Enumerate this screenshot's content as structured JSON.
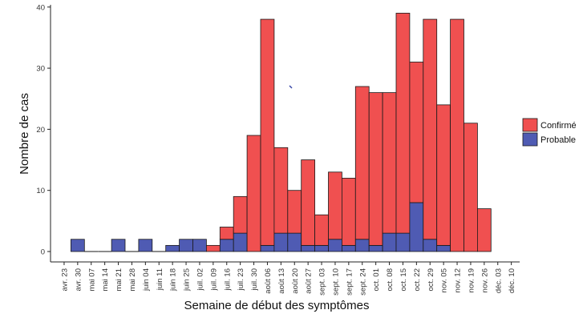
{
  "chart_data": {
    "type": "bar",
    "stacked": true,
    "xlabel": "Semaine de début des symptômes",
    "ylabel": "Nombre de cas",
    "ylim": [
      0,
      41
    ],
    "yticks": [
      0,
      10,
      20,
      30,
      40
    ],
    "grid": false,
    "legend_position": "right",
    "categories": [
      "avr. 23",
      "avr. 30",
      "mai 07",
      "mai 14",
      "mai 21",
      "mai 28",
      "juin 04",
      "juin 11",
      "juin 18",
      "juin 25",
      "juil. 02",
      "juil. 09",
      "juil. 16",
      "juil. 23",
      "juil. 30",
      "août 06",
      "août 13",
      "août 20",
      "août 27",
      "sept. 03",
      "sept. 10",
      "sept. 17",
      "sept. 24",
      "oct. 01",
      "oct. 08",
      "oct. 15",
      "oct. 22",
      "oct. 29",
      "nov. 05",
      "nov. 12",
      "nov. 19",
      "nov. 26",
      "déc. 03",
      "déc. 10"
    ],
    "series": [
      {
        "name": "Probable",
        "color": "#4f5bb3",
        "values": [
          0,
          2,
          0,
          0,
          2,
          0,
          2,
          0,
          1,
          2,
          2,
          0,
          2,
          3,
          0,
          1,
          3,
          3,
          1,
          1,
          2,
          1,
          2,
          1,
          3,
          3,
          8,
          2,
          1,
          0,
          0,
          0,
          0,
          0
        ]
      },
      {
        "name": "Confirmé",
        "color": "#f05050",
        "values": [
          0,
          0,
          0,
          0,
          0,
          0,
          0,
          0,
          0,
          0,
          0,
          1,
          2,
          6,
          19,
          37,
          14,
          7,
          14,
          5,
          11,
          11,
          25,
          25,
          23,
          36,
          23,
          36,
          23,
          38,
          21,
          7,
          0,
          0
        ]
      }
    ],
    "legend": [
      {
        "name": "Confirmé",
        "color": "#f05050"
      },
      {
        "name": "Probable",
        "color": "#4f5bb3"
      }
    ]
  }
}
